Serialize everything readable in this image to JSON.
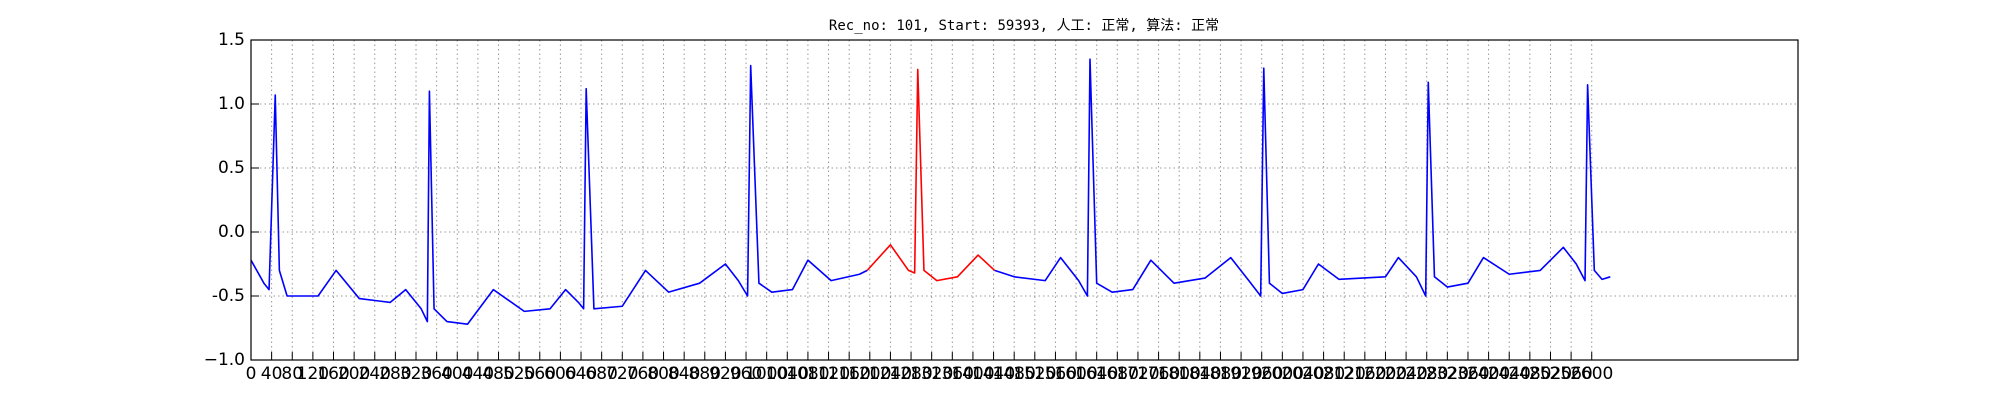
{
  "chart_data": {
    "type": "line",
    "title": "Rec_no: 101, Start: 59393, 人工: 正常, 算法: 正常",
    "xlim": [
      0,
      3000
    ],
    "xticks": [
      0,
      40,
      80,
      120,
      160,
      200,
      240,
      280,
      320,
      360,
      400,
      440,
      480,
      520,
      560,
      600,
      640,
      680,
      720,
      760,
      800,
      840,
      880,
      920,
      960,
      1000,
      1040,
      1080,
      1120,
      1160,
      1200,
      1240,
      1280,
      1320,
      1360,
      1400,
      1440,
      1480,
      1520,
      1560,
      1600,
      1640,
      1680,
      1720,
      1760,
      1800,
      1840,
      1880,
      1920,
      1960,
      2000,
      2040,
      2080,
      2120,
      2160,
      2200,
      2240,
      2280,
      2320,
      2360,
      2400,
      2440,
      2480,
      2520,
      2560,
      2600
    ],
    "ylim": [
      -1.0,
      1.5
    ],
    "yticks": [
      {
        "value": -1.0,
        "label": "−1.0"
      },
      -0.5,
      {
        "value": 0,
        "label": "0.0"
      },
      0.5,
      {
        "value": 1.0,
        "label": "1.0"
      },
      1.5
    ],
    "grid": true,
    "series": [
      {
        "color": "#0000ff",
        "x": [
          0,
          25,
          35,
          47,
          55,
          70,
          130,
          165,
          210,
          270,
          300,
          330,
          342,
          346,
          355,
          380,
          420,
          470,
          530,
          580,
          610,
          635,
          645,
          650,
          665,
          720,
          765,
          810,
          870,
          920,
          945,
          963,
          969,
          985,
          1010,
          1050,
          1080,
          1125,
          1180,
          1195,
          1300,
          1442,
          1480,
          1540,
          1570,
          1605,
          1622,
          1627,
          1640,
          1670,
          1710,
          1745,
          1790,
          1850,
          1900,
          1935,
          1958,
          1964,
          1975,
          2000,
          2040,
          2070,
          2110,
          2200,
          2225,
          2260,
          2278,
          2283,
          2295,
          2320,
          2360,
          2390,
          2440,
          2500,
          2545,
          2570,
          2587,
          2592,
          2605,
          2620,
          2636
        ],
        "values": [
          -0.22,
          -0.4,
          -0.45,
          1.07,
          -0.3,
          -0.5,
          -0.5,
          -0.3,
          -0.52,
          -0.55,
          -0.45,
          -0.6,
          -0.7,
          1.1,
          -0.6,
          -0.7,
          -0.72,
          -0.45,
          -0.62,
          -0.6,
          -0.45,
          -0.55,
          -0.6,
          1.12,
          -0.6,
          -0.58,
          -0.3,
          -0.47,
          -0.4,
          -0.25,
          -0.38,
          -0.5,
          1.3,
          -0.4,
          -0.47,
          -0.45,
          -0.22,
          -0.38,
          -0.33,
          -0.3,
          null,
          -0.3,
          -0.35,
          -0.38,
          -0.2,
          -0.38,
          -0.5,
          1.35,
          -0.4,
          -0.47,
          -0.45,
          -0.22,
          -0.4,
          -0.36,
          -0.2,
          -0.38,
          -0.5,
          1.28,
          -0.4,
          -0.48,
          -0.45,
          -0.25,
          -0.37,
          -0.35,
          -0.2,
          -0.35,
          -0.5,
          1.17,
          -0.35,
          -0.43,
          -0.4,
          -0.2,
          -0.33,
          -0.3,
          -0.12,
          -0.25,
          -0.38,
          1.15,
          -0.3,
          -0.37,
          -0.35
        ]
      },
      {
        "color": "#ff0000",
        "x": [
          1195,
          1240,
          1275,
          1287,
          1293,
          1305,
          1330,
          1370,
          1410,
          1442
        ],
        "values": [
          -0.3,
          -0.1,
          -0.3,
          -0.32,
          1.27,
          -0.3,
          -0.38,
          -0.35,
          -0.18,
          -0.3
        ]
      }
    ]
  }
}
